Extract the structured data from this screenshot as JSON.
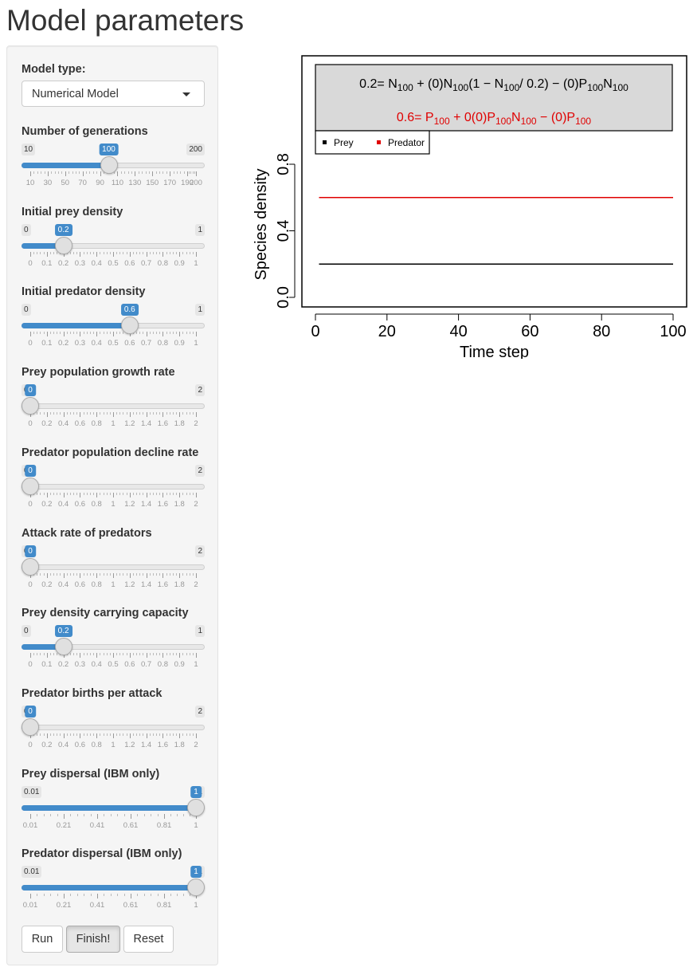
{
  "page": {
    "title": "Model parameters"
  },
  "model_type": {
    "label": "Model type:",
    "value": "Numerical Model"
  },
  "sliders": [
    {
      "id": "generations",
      "label": "Number of generations",
      "min": 10,
      "max": 200,
      "value": 100,
      "min_label": "10",
      "max_label": "200",
      "value_label": "100",
      "ticks": [
        "10",
        "30",
        "50",
        "70",
        "90",
        "110",
        "130",
        "150",
        "170",
        "190",
        "200"
      ]
    },
    {
      "id": "prey-init",
      "label": "Initial prey density",
      "min": 0,
      "max": 1,
      "value": 0.2,
      "min_label": "0",
      "max_label": "1",
      "value_label": "0.2",
      "ticks": [
        "0",
        "0.1",
        "0.2",
        "0.3",
        "0.4",
        "0.5",
        "0.6",
        "0.7",
        "0.8",
        "0.9",
        "1"
      ]
    },
    {
      "id": "pred-init",
      "label": "Initial predator density",
      "min": 0,
      "max": 1,
      "value": 0.6,
      "min_label": "0",
      "max_label": "1",
      "value_label": "0.6",
      "ticks": [
        "0",
        "0.1",
        "0.2",
        "0.3",
        "0.4",
        "0.5",
        "0.6",
        "0.7",
        "0.8",
        "0.9",
        "1"
      ]
    },
    {
      "id": "prey-growth",
      "label": "Prey population growth rate",
      "min": 0,
      "max": 2,
      "value": 0,
      "min_label": "0",
      "max_label": "2",
      "value_label": "0",
      "ticks": [
        "0",
        "0.2",
        "0.4",
        "0.6",
        "0.8",
        "1",
        "1.2",
        "1.4",
        "1.6",
        "1.8",
        "2"
      ]
    },
    {
      "id": "pred-decline",
      "label": "Predator population decline rate",
      "min": 0,
      "max": 2,
      "value": 0,
      "min_label": "0",
      "max_label": "2",
      "value_label": "0",
      "ticks": [
        "0",
        "0.2",
        "0.4",
        "0.6",
        "0.8",
        "1",
        "1.2",
        "1.4",
        "1.6",
        "1.8",
        "2"
      ]
    },
    {
      "id": "attack",
      "label": "Attack rate of predators",
      "min": 0,
      "max": 2,
      "value": 0,
      "min_label": "0",
      "max_label": "2",
      "value_label": "0",
      "ticks": [
        "0",
        "0.2",
        "0.4",
        "0.6",
        "0.8",
        "1",
        "1.2",
        "1.4",
        "1.6",
        "1.8",
        "2"
      ]
    },
    {
      "id": "capacity",
      "label": "Prey density carrying capacity",
      "min": 0,
      "max": 1,
      "value": 0.2,
      "min_label": "0",
      "max_label": "1",
      "value_label": "0.2",
      "ticks": [
        "0",
        "0.1",
        "0.2",
        "0.3",
        "0.4",
        "0.5",
        "0.6",
        "0.7",
        "0.8",
        "0.9",
        "1"
      ]
    },
    {
      "id": "births",
      "label": "Predator births per attack",
      "min": 0,
      "max": 2,
      "value": 0,
      "min_label": "0",
      "max_label": "2",
      "value_label": "0",
      "ticks": [
        "0",
        "0.2",
        "0.4",
        "0.6",
        "0.8",
        "1",
        "1.2",
        "1.4",
        "1.6",
        "1.8",
        "2"
      ]
    },
    {
      "id": "prey-dispersal",
      "label": "Prey dispersal (IBM only)",
      "min": 0.01,
      "max": 1,
      "value": 1,
      "min_label": "0.01",
      "max_label": "1",
      "value_label": "1",
      "ticks": [
        "0.01",
        "0.21",
        "0.41",
        "0.61",
        "0.81",
        "1"
      ]
    },
    {
      "id": "pred-dispersal",
      "label": "Predator dispersal (IBM only)",
      "min": 0.01,
      "max": 1,
      "value": 1,
      "min_label": "0.01",
      "max_label": "1",
      "value_label": "1",
      "ticks": [
        "0.01",
        "0.21",
        "0.41",
        "0.61",
        "0.81",
        "1"
      ]
    }
  ],
  "buttons": {
    "run": "Run",
    "finish": "Finish!",
    "reset": "Reset"
  },
  "chart_data": {
    "type": "line",
    "xlabel": "Time step",
    "ylabel": "Species density",
    "xlim": [
      0,
      100
    ],
    "ylim": [
      0,
      1
    ],
    "x_ticks": [
      "0",
      "20",
      "40",
      "60",
      "80",
      "100"
    ],
    "y_ticks": [
      "0.0",
      "0.4",
      "0.8"
    ],
    "grid": false,
    "legend_position": "top-left",
    "series": [
      {
        "name": "Prey",
        "color": "#000000",
        "x": [
          1,
          100
        ],
        "values": [
          0.2,
          0.2
        ]
      },
      {
        "name": "Predator",
        "color": "#e00000",
        "x": [
          1,
          100
        ],
        "values": [
          0.6,
          0.6
        ]
      }
    ],
    "annotation": {
      "prey_equation": {
        "lhs": "0.2",
        "parts": [
          [
            "= ",
            "n"
          ],
          [
            "N",
            "n"
          ],
          [
            "100",
            "s"
          ],
          [
            " + (0)",
            "n"
          ],
          [
            "N",
            "n"
          ],
          [
            "100",
            "s"
          ],
          [
            "(1 − ",
            "n"
          ],
          [
            "N",
            "n"
          ],
          [
            "100",
            "s"
          ],
          [
            "/ 0.2) − (0)",
            "n"
          ],
          [
            "P",
            "n"
          ],
          [
            "100",
            "s"
          ],
          [
            "N",
            "n"
          ],
          [
            "100",
            "s"
          ]
        ]
      },
      "predator_equation": {
        "lhs": "0.6",
        "parts": [
          [
            "= ",
            "n"
          ],
          [
            "P",
            "n"
          ],
          [
            "100",
            "s"
          ],
          [
            " + 0(0)",
            "n"
          ],
          [
            "P",
            "n"
          ],
          [
            "100",
            "s"
          ],
          [
            "N",
            "n"
          ],
          [
            "100",
            "s"
          ],
          [
            " − (0)",
            "n"
          ],
          [
            "P",
            "n"
          ],
          [
            "100",
            "s"
          ]
        ]
      }
    }
  }
}
